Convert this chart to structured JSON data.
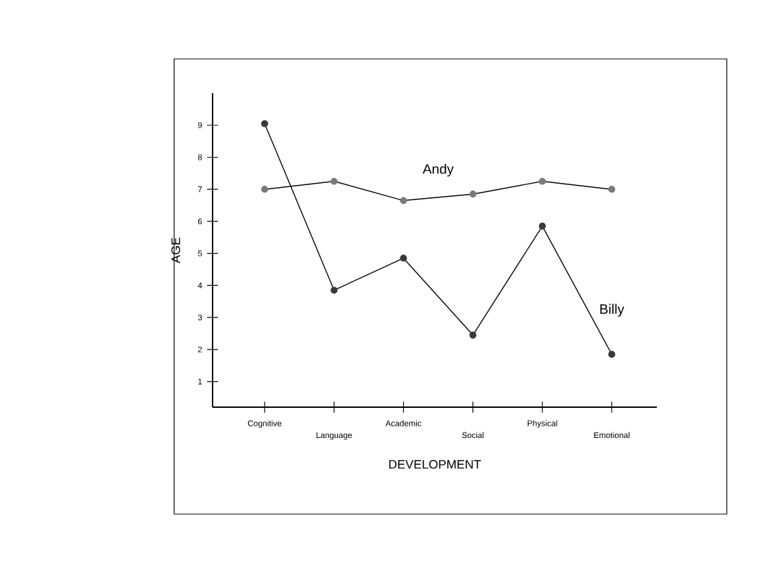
{
  "chart_data": {
    "type": "line",
    "xlabel": "DEVELOPMENT",
    "ylabel": "AGE",
    "categories": [
      "Cognitive",
      "Language",
      "Academic",
      "Social",
      "Physical",
      "Emotional"
    ],
    "series": [
      {
        "name": "Andy",
        "color": "#7a7a7a",
        "values": [
          7.0,
          7.25,
          6.65,
          6.85,
          7.25,
          7.0
        ]
      },
      {
        "name": "Billy",
        "color": "#3a3a3a",
        "values": [
          9.05,
          3.85,
          4.85,
          2.45,
          5.85,
          1.85
        ]
      }
    ],
    "ylim": [
      0.2,
      10
    ],
    "yticks": [
      1,
      2,
      3,
      4,
      5,
      6,
      7,
      8,
      9
    ],
    "marker": "circle",
    "line_style": "solid",
    "grid": false
  }
}
